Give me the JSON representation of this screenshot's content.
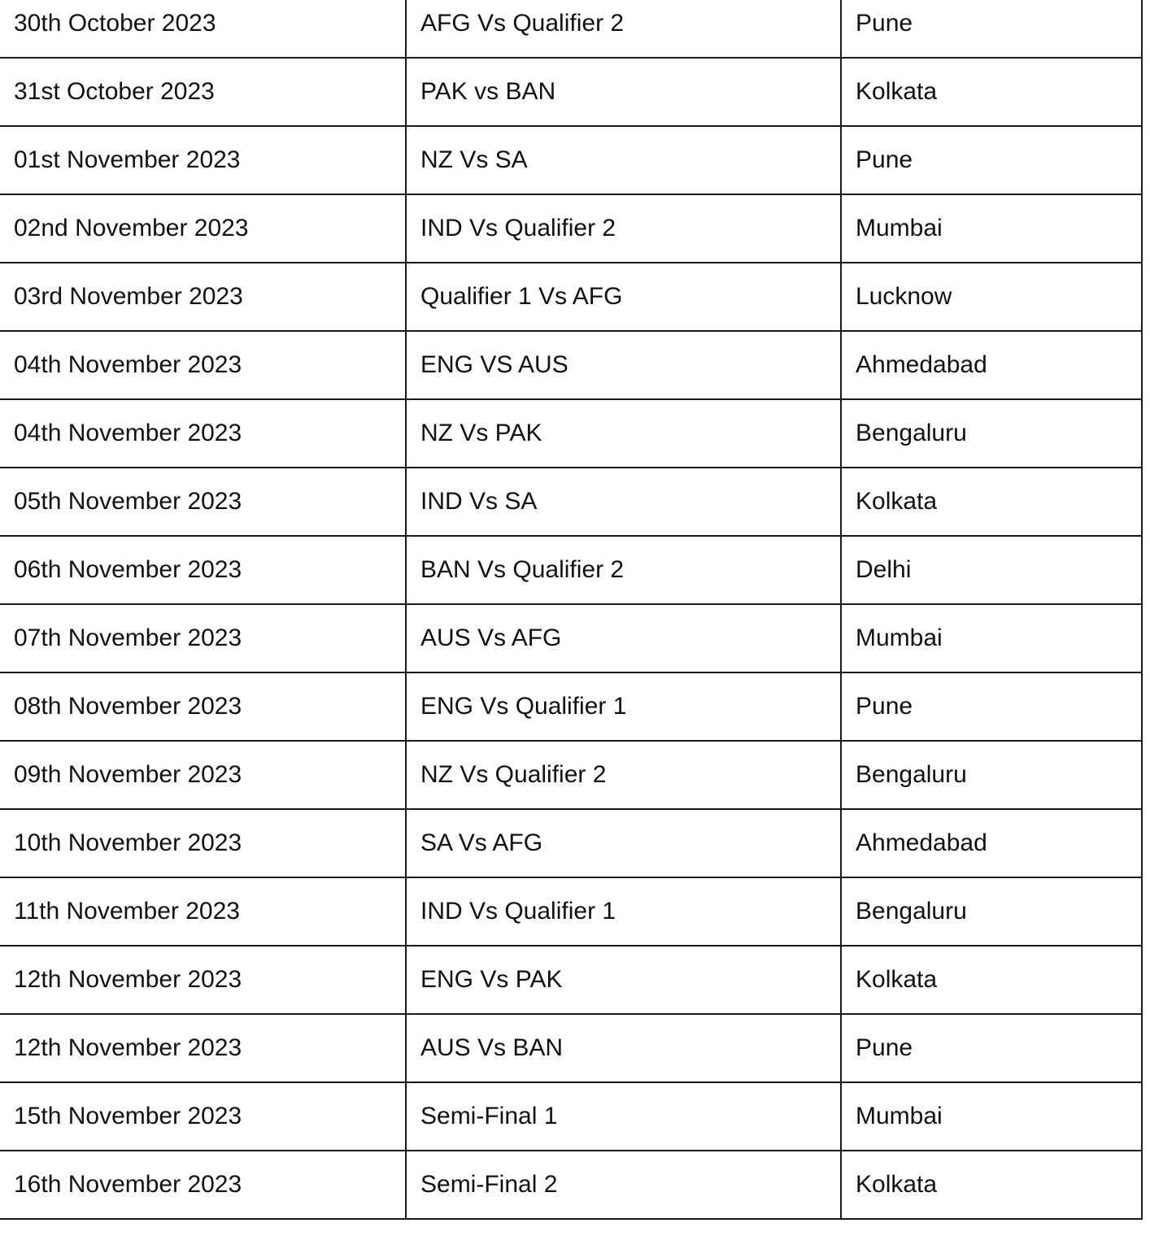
{
  "schedule": {
    "rows": [
      {
        "date": "30th October 2023",
        "match": "AFG Vs Qualifier 2",
        "venue": "Pune"
      },
      {
        "date": "31st October 2023",
        "match": "PAK vs BAN",
        "venue": "Kolkata"
      },
      {
        "date": "01st November 2023",
        "match": "NZ Vs SA",
        "venue": "Pune"
      },
      {
        "date": "02nd November 2023",
        "match": "IND Vs Qualifier 2",
        "venue": "Mumbai"
      },
      {
        "date": "03rd November 2023",
        "match": "Qualifier 1 Vs AFG",
        "venue": "Lucknow"
      },
      {
        "date": "04th November 2023",
        "match": "ENG VS AUS",
        "venue": "Ahmedabad"
      },
      {
        "date": "04th November 2023",
        "match": "NZ Vs PAK",
        "venue": "Bengaluru"
      },
      {
        "date": "05th November 2023",
        "match": "IND Vs SA",
        "venue": "Kolkata"
      },
      {
        "date": "06th November 2023",
        "match": "BAN Vs Qualifier 2",
        "venue": "Delhi"
      },
      {
        "date": "07th November 2023",
        "match": "AUS Vs AFG",
        "venue": "Mumbai"
      },
      {
        "date": "08th November 2023",
        "match": "ENG Vs Qualifier 1",
        "venue": "Pune"
      },
      {
        "date": "09th November 2023",
        "match": "NZ Vs Qualifier 2",
        "venue": "Bengaluru"
      },
      {
        "date": "10th November 2023",
        "match": "SA Vs AFG",
        "venue": "Ahmedabad"
      },
      {
        "date": "11th November 2023",
        "match": "IND Vs Qualifier 1",
        "venue": "Bengaluru"
      },
      {
        "date": "12th November 2023",
        "match": "ENG Vs PAK",
        "venue": "Kolkata"
      },
      {
        "date": "12th November 2023",
        "match": "AUS Vs BAN",
        "venue": "Pune"
      },
      {
        "date": "15th November 2023",
        "match": "Semi-Final 1",
        "venue": "Mumbai"
      },
      {
        "date": "16th November 2023",
        "match": "Semi-Final 2",
        "venue": "Kolkata"
      }
    ]
  }
}
